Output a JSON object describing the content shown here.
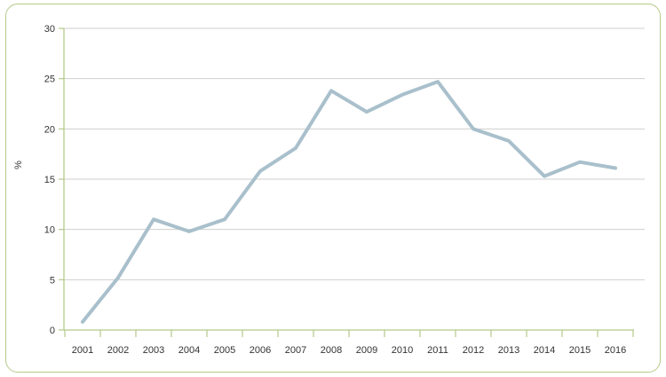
{
  "chart_data": {
    "type": "line",
    "title": "",
    "xlabel": "",
    "ylabel": "%",
    "ylim": [
      0,
      30
    ],
    "yticks": [
      0,
      5,
      10,
      15,
      20,
      25,
      30
    ],
    "grid": true,
    "legend": "none",
    "categories": [
      "2001",
      "2002",
      "2003",
      "2004",
      "2005",
      "2006",
      "2007",
      "2008",
      "2009",
      "2010",
      "2011",
      "2012",
      "2013",
      "2014",
      "2015",
      "2016"
    ],
    "series": [
      {
        "values": [
          0.8,
          5.2,
          11.0,
          9.8,
          11.0,
          15.8,
          18.1,
          23.8,
          21.7,
          23.4,
          24.7,
          20.0,
          18.8,
          15.3,
          16.7,
          16.1
        ]
      }
    ],
    "colors": {
      "line": "#a9c0cc",
      "grid": "#cfcfcf",
      "axis": "#b5c98a",
      "frame": "#b5c98a"
    }
  }
}
